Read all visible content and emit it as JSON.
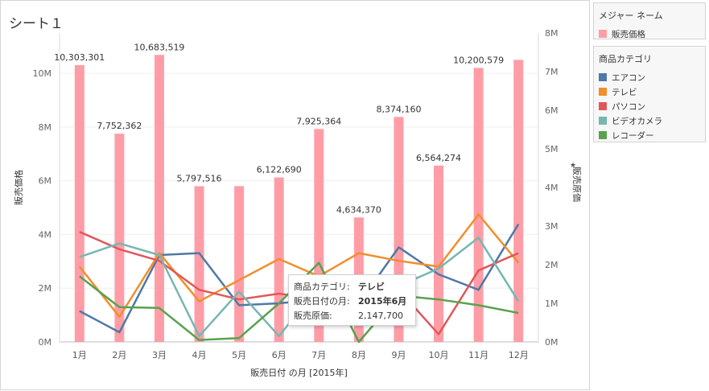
{
  "sheet": {
    "title": "シート１"
  },
  "legend_measures": {
    "title": "メジャー ネーム",
    "items": [
      {
        "label": "販売価格",
        "color": "#ff9da7"
      }
    ]
  },
  "legend_categories": {
    "title": "商品カテゴリ",
    "items": [
      {
        "label": "エアコン",
        "color": "#4e79a7"
      },
      {
        "label": "テレビ",
        "color": "#f28e2b"
      },
      {
        "label": "パソコン",
        "color": "#e15759"
      },
      {
        "label": "ビデオカメラ",
        "color": "#76b7b2"
      },
      {
        "label": "レコーダー",
        "color": "#59a14f"
      }
    ]
  },
  "tooltip": {
    "rows": [
      {
        "label": "商品カテゴリ:",
        "value": "テレビ",
        "bold": true
      },
      {
        "label": "販売日付の月:",
        "value": "2015年6月",
        "bold": true
      },
      {
        "label": "販売原価:",
        "value": "2,147,700",
        "bold": false
      }
    ]
  },
  "chart_data": {
    "type": "bar+line",
    "categories": [
      "1月",
      "2月",
      "3月",
      "4月",
      "5月",
      "6月",
      "7月",
      "8月",
      "9月",
      "10月",
      "11月",
      "12月"
    ],
    "xlabel": "販売日付 の月 [2015年]",
    "left_axis": {
      "label": "販売価格",
      "range": [
        0,
        11500000
      ],
      "ticks": [
        0,
        2000000,
        4000000,
        6000000,
        8000000,
        10000000
      ],
      "tick_labels": [
        "0M",
        "2M",
        "4M",
        "6M",
        "8M",
        "10M"
      ]
    },
    "right_axis": {
      "label": "販売原価",
      "pin_icon": "pin-icon",
      "range": [
        0,
        8000000
      ],
      "ticks": [
        0,
        1000000,
        2000000,
        3000000,
        4000000,
        5000000,
        6000000,
        7000000,
        8000000
      ],
      "tick_labels": [
        "0M",
        "1M",
        "2M",
        "3M",
        "4M",
        "5M",
        "6M",
        "7M",
        "8M"
      ]
    },
    "bars": {
      "name": "販売価格",
      "color": "#ff9da7",
      "values": [
        10303301,
        7752362,
        10683519,
        5797516,
        5800000,
        6122690,
        7925364,
        4634370,
        8374160,
        6564274,
        10200579,
        10500000
      ],
      "labels": [
        "10,303,301",
        "7,752,362",
        "10,683,519",
        "5,797,516",
        "",
        "6,122,690",
        "7,925,364",
        "4,634,370",
        "8,374,160",
        "6,564,274",
        "10,200,579",
        ""
      ]
    },
    "series": [
      {
        "name": "エアコン",
        "color": "#4e79a7",
        "values": [
          800000,
          250000,
          2250000,
          2300000,
          950000,
          1000000,
          1100000,
          1000000,
          2450000,
          1750000,
          1350000,
          3050000
        ]
      },
      {
        "name": "テレビ",
        "color": "#f28e2b",
        "values": [
          1950000,
          650000,
          2300000,
          1050000,
          1600000,
          2147700,
          1700000,
          2300000,
          2100000,
          1950000,
          3300000,
          2050000
        ]
      },
      {
        "name": "パソコン",
        "color": "#e15759",
        "values": [
          2850000,
          2400000,
          2100000,
          1350000,
          1100000,
          1250000,
          1100000,
          1200000,
          1350000,
          200000,
          1850000,
          2300000
        ]
      },
      {
        "name": "ビデオカメラ",
        "color": "#76b7b2",
        "values": [
          2200000,
          2550000,
          2250000,
          150000,
          1300000,
          150000,
          1450000,
          1350000,
          1450000,
          1900000,
          2700000,
          1050000
        ]
      },
      {
        "name": "レコーダー",
        "color": "#59a14f",
        "values": [
          1700000,
          900000,
          880000,
          50000,
          100000,
          1000000,
          2050000,
          0,
          1200000,
          1100000,
          950000,
          750000
        ]
      }
    ]
  }
}
